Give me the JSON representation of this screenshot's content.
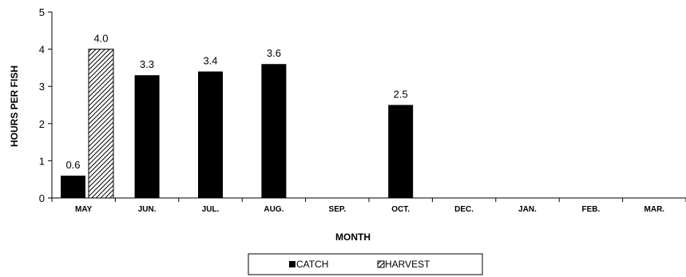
{
  "chart_data": {
    "type": "bar",
    "xlabel": "MONTH",
    "ylabel": "HOURS PER FISH",
    "ylim": [
      0,
      5
    ],
    "yticks": [
      0,
      1,
      2,
      3,
      4,
      5
    ],
    "categories": [
      "MAY",
      "JUN.",
      "JUL.",
      "AUG.",
      "SEP.",
      "OCT.",
      "DEC.",
      "JAN.",
      "FEB.",
      "MAR."
    ],
    "series": [
      {
        "name": "CATCH",
        "color": "#000000",
        "values": [
          0.6,
          3.3,
          3.4,
          3.6,
          null,
          2.5,
          null,
          null,
          null,
          null
        ],
        "labels": [
          "0.6",
          "3.3",
          "3.4",
          "3.6",
          "",
          "2.5",
          "",
          "",
          "",
          ""
        ]
      },
      {
        "name": "HARVEST",
        "color": "hatched",
        "values": [
          4.0,
          null,
          null,
          null,
          null,
          null,
          null,
          null,
          null,
          null
        ],
        "labels": [
          "4.0",
          "",
          "",
          "",
          "",
          "",
          "",
          "",
          "",
          ""
        ]
      }
    ],
    "grid": false,
    "legend": "bottom"
  }
}
